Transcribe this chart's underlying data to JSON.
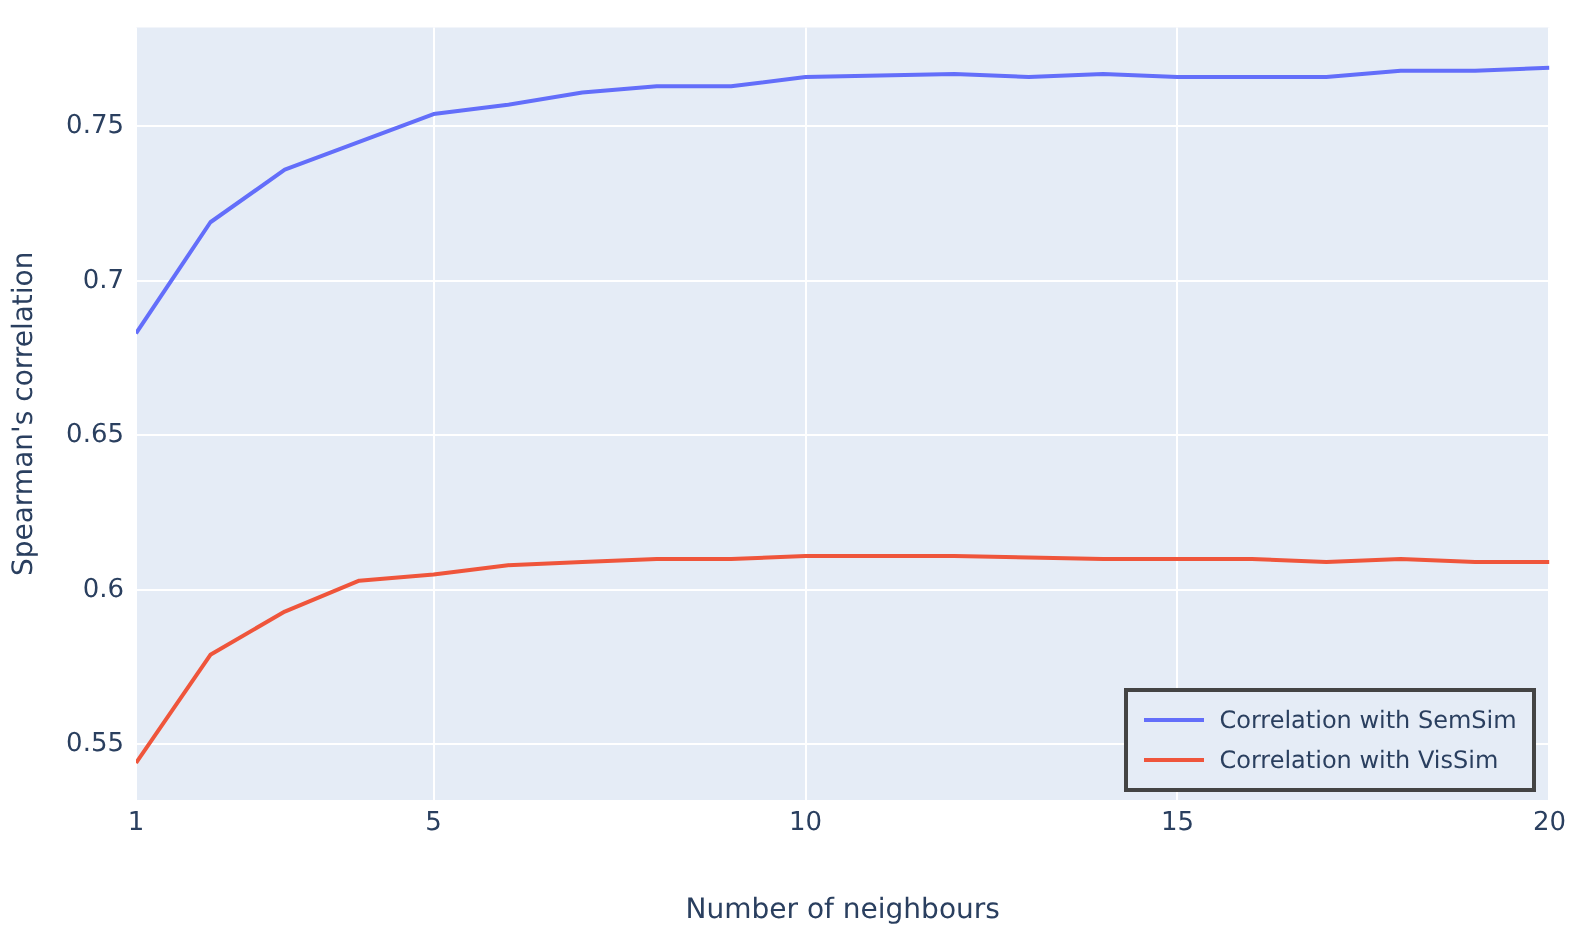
{
  "chart_data": {
    "type": "line",
    "xlabel": "Number of neighbours",
    "ylabel": "Spearman's correlation",
    "x": [
      1,
      2,
      3,
      4,
      5,
      6,
      7,
      8,
      9,
      10,
      11,
      12,
      13,
      14,
      15,
      16,
      17,
      18,
      19,
      20
    ],
    "series": [
      {
        "name": "Correlation with SemSim",
        "color": "#636efa",
        "values": [
          0.683,
          0.719,
          0.736,
          0.745,
          0.754,
          0.757,
          0.761,
          0.763,
          0.763,
          0.766,
          0.7665,
          0.767,
          0.766,
          0.767,
          0.766,
          0.766,
          0.766,
          0.768,
          0.768,
          0.769
        ]
      },
      {
        "name": "Correlation with VisSim",
        "color": "#ef553b",
        "values": [
          0.544,
          0.579,
          0.593,
          0.603,
          0.605,
          0.608,
          0.609,
          0.61,
          0.61,
          0.611,
          0.611,
          0.611,
          0.6105,
          0.61,
          0.61,
          0.61,
          0.609,
          0.61,
          0.609,
          0.609
        ]
      }
    ],
    "xlim": [
      1,
      20
    ],
    "xticks": [
      1,
      5,
      10,
      15,
      20
    ],
    "ylim": [
      0.532,
      0.782
    ],
    "yticks": [
      0.55,
      0.6,
      0.65,
      0.7,
      0.75
    ],
    "grid": true,
    "legend": "bottom right",
    "marker": "none",
    "line_style": "solid"
  }
}
